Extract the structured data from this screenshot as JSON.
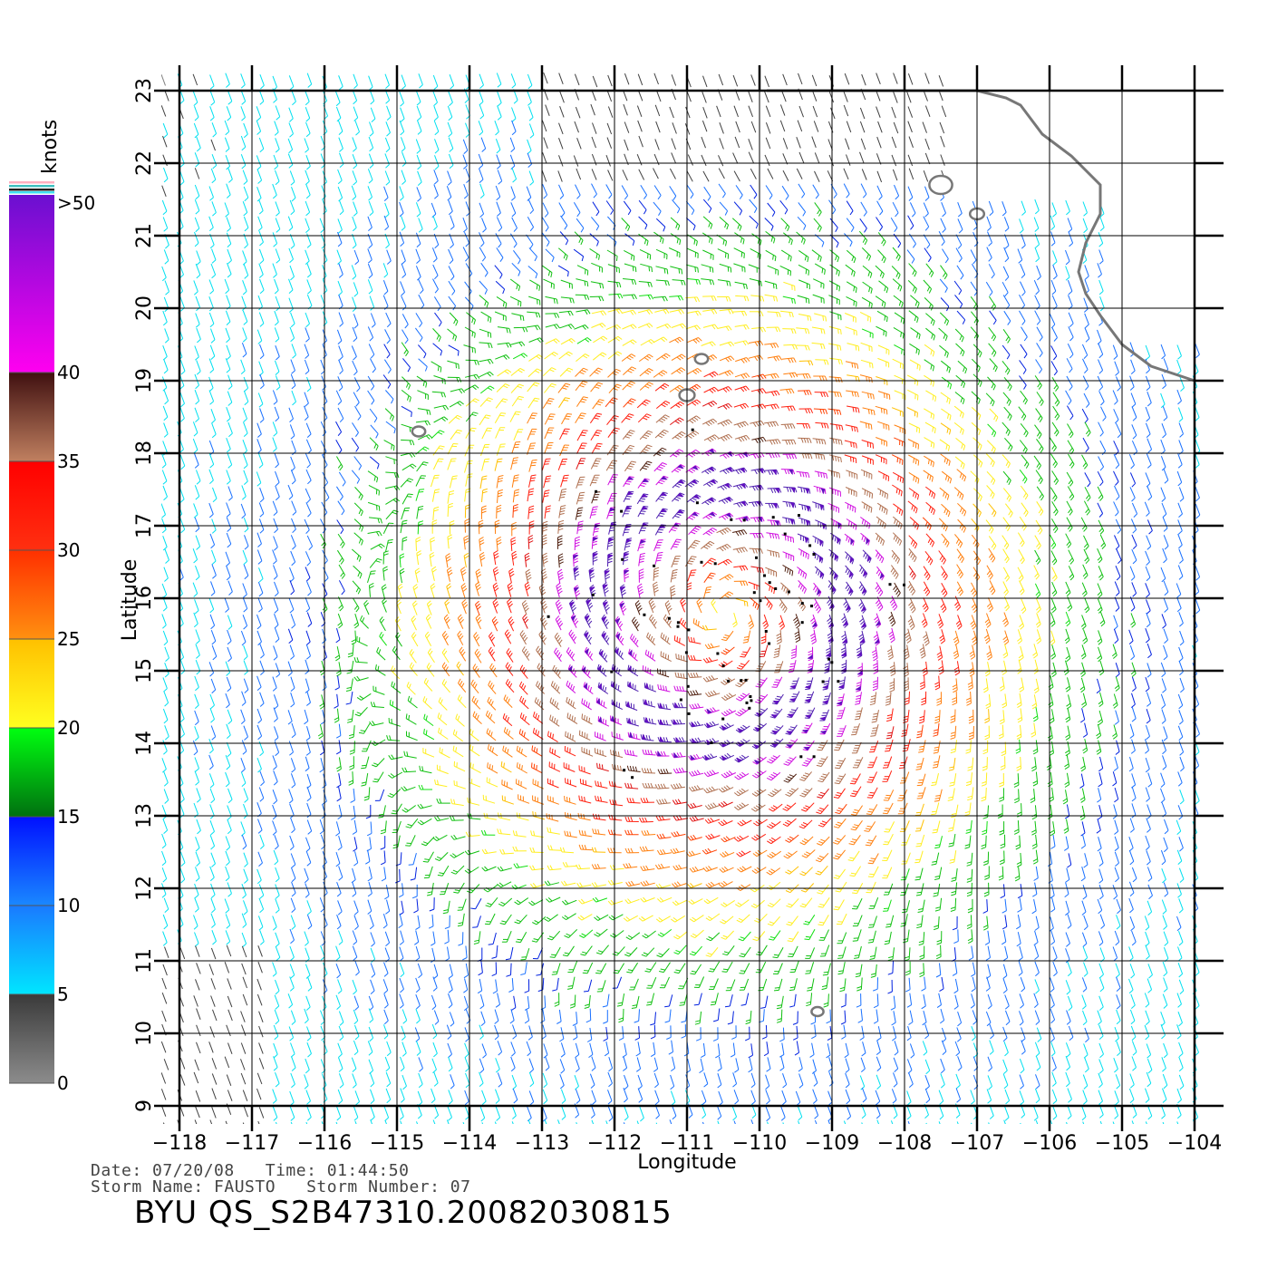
{
  "colorbar": {
    "unit_label": "knots",
    "bands": [
      {
        "label": "0",
        "from": 0,
        "to": 5,
        "top": "#3a3a3a",
        "bottom": "#8c8c8c"
      },
      {
        "label": "5",
        "from": 5,
        "to": 10,
        "top": "#1a7aff",
        "bottom": "#00e6ff"
      },
      {
        "label": "10",
        "from": 10,
        "to": 15,
        "top": "#0010ff",
        "bottom": "#1a88ff"
      },
      {
        "label": "15",
        "from": 15,
        "to": 20,
        "top": "#00ff10",
        "bottom": "#007010"
      },
      {
        "label": "20",
        "from": 20,
        "to": 25,
        "top": "#ffc000",
        "bottom": "#ffff20"
      },
      {
        "label": "25",
        "from": 25,
        "to": 30,
        "top": "#ff3000",
        "bottom": "#ff9010"
      },
      {
        "label": "30",
        "from": 30,
        "to": 35,
        "top": "#ff0000",
        "bottom": "#ff3010"
      },
      {
        "label": "35",
        "from": 35,
        "to": 40,
        "top": "#401010",
        "bottom": "#c08060"
      },
      {
        "label": "40",
        "from": 40,
        "to": 50,
        "top": "#6a10d0",
        "bottom": "#ff00f0"
      }
    ],
    "top_label": ">50"
  },
  "chart_data": {
    "type": "map",
    "xlabel": "Longitude",
    "ylabel": "Latitude",
    "xlim": [
      -118,
      -104
    ],
    "ylim": [
      9,
      23
    ],
    "x_ticks": [
      -118,
      -117,
      -116,
      -115,
      -114,
      -113,
      -112,
      -111,
      -110,
      -109,
      -108,
      -107,
      -106,
      -105,
      -104
    ],
    "y_ticks": [
      9,
      10,
      11,
      12,
      13,
      14,
      15,
      16,
      17,
      18,
      19,
      20,
      21,
      22,
      23
    ],
    "x_tick_labels": [
      "−118",
      "−117",
      "−116",
      "−115",
      "−114",
      "−113",
      "−112",
      "−111",
      "−110",
      "−109",
      "−108",
      "−107",
      "−106",
      "−105",
      "−104"
    ],
    "y_tick_labels": [
      "9",
      "10",
      "11",
      "12",
      "13",
      "14",
      "15",
      "16",
      "17",
      "18",
      "19",
      "20",
      "21",
      "22",
      "23"
    ],
    "grid": true,
    "storm_center": {
      "lon": -110.5,
      "lat": 15.8
    },
    "max_wind_knots": 50,
    "wind_speed_unit": "knots",
    "coastline": [
      [
        -109.9,
        23.0
      ],
      [
        -109.6,
        23.0
      ],
      [
        -109.2,
        23.0
      ],
      [
        -108.7,
        23.0
      ],
      [
        -108.1,
        23.0
      ],
      [
        -107.5,
        23.0
      ],
      [
        -107.0,
        23.0
      ],
      [
        -106.6,
        22.9
      ],
      [
        -106.4,
        22.8
      ],
      [
        -106.1,
        22.4
      ],
      [
        -105.7,
        22.1
      ],
      [
        -105.3,
        21.7
      ],
      [
        -105.3,
        21.3
      ],
      [
        -105.5,
        20.9
      ],
      [
        -105.6,
        20.5
      ],
      [
        -105.5,
        20.2
      ],
      [
        -105.3,
        19.9
      ],
      [
        -105.0,
        19.5
      ],
      [
        -104.6,
        19.2
      ],
      [
        -104.0,
        19.0
      ]
    ],
    "islands": [
      {
        "lon": -107.5,
        "lat": 21.7,
        "size": 1.6
      },
      {
        "lon": -107.0,
        "lat": 21.3,
        "size": 0.8
      },
      {
        "lon": -110.8,
        "lat": 19.3,
        "size": 0.7
      },
      {
        "lon": -111.0,
        "lat": 18.8,
        "size": 0.9
      },
      {
        "lon": -114.7,
        "lat": 18.3,
        "size": 0.7
      },
      {
        "lon": -109.2,
        "lat": 10.3,
        "size": 0.6
      }
    ]
  },
  "info": {
    "date_line": "Date: 07/20/08   Time: 01:44:50",
    "storm_line": "Storm Name: FAUSTO   Storm Number: 07"
  },
  "file_id": "BYU QS_S2B47310.20082030815"
}
